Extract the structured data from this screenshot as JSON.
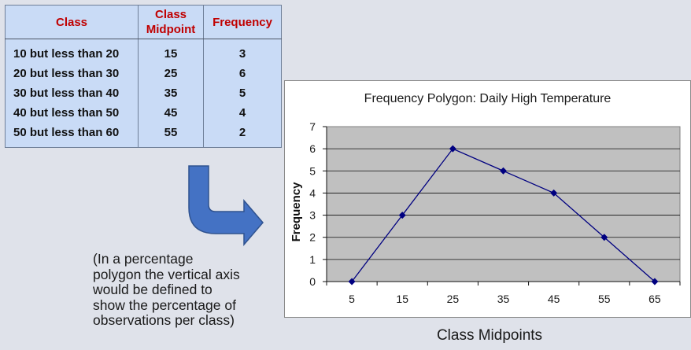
{
  "table": {
    "headers": [
      "Class",
      "Class\nMidpoint",
      "Frequency"
    ],
    "rows": [
      {
        "cls": "10 but less than 20",
        "mid": "15",
        "freq": "3"
      },
      {
        "cls": "20 but less than 30",
        "mid": "25",
        "freq": "6"
      },
      {
        "cls": "30 but less than 40",
        "mid": "35",
        "freq": "5"
      },
      {
        "cls": "40 but less than 50",
        "mid": "45",
        "freq": "4"
      },
      {
        "cls": "50 but less than 60",
        "mid": "55",
        "freq": "2"
      }
    ]
  },
  "note": "(In a percentage\npolygon the vertical axis\nwould be defined to\nshow the percentage of\nobservations per class)",
  "chart_data": {
    "type": "line",
    "title": "Frequency Polygon: Daily High Temperature",
    "xlabel": "Class Midpoints",
    "ylabel": "Frequency",
    "categories": [
      "5",
      "15",
      "25",
      "35",
      "45",
      "55",
      "65"
    ],
    "x": [
      5,
      15,
      25,
      35,
      45,
      55,
      65
    ],
    "y": [
      0,
      3,
      6,
      5,
      4,
      2,
      0
    ],
    "ylim": [
      0,
      7
    ],
    "yticks": [
      "0",
      "1",
      "2",
      "3",
      "4",
      "5",
      "6",
      "7"
    ],
    "grid": true,
    "plot_background": "#c0c0c0",
    "line_color": "#000080",
    "marker": "diamond"
  },
  "colors": {
    "table_bg": "#c9dbf6",
    "header_text": "#c00000",
    "arrow": "#4472c4"
  }
}
